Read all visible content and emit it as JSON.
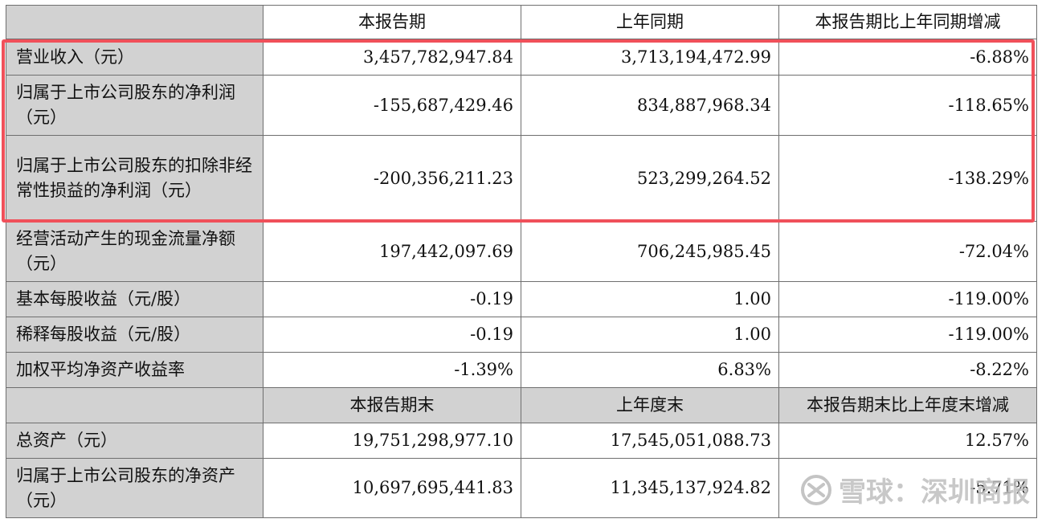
{
  "section1": {
    "headers": [
      "本报告期",
      "上年同期",
      "本报告期比上年同期增减"
    ],
    "rows": [
      {
        "label": "营业收入（元）",
        "values": [
          "3,457,782,947.84",
          "3,713,194,472.99",
          "-6.88%"
        ]
      },
      {
        "label": "归属于上市公司股东的净利润（元）",
        "values": [
          "-155,687,429.46",
          "834,887,968.34",
          "-118.65%"
        ]
      },
      {
        "label": "归属于上市公司股东的扣除非经常性损益的净利润（元）",
        "values": [
          "-200,356,211.23",
          "523,299,264.52",
          "-138.29%"
        ]
      },
      {
        "label": "经营活动产生的现金流量净额（元）",
        "values": [
          "197,442,097.69",
          "706,245,985.45",
          "-72.04%"
        ]
      },
      {
        "label": "基本每股收益（元/股）",
        "values": [
          "-0.19",
          "1.00",
          "-119.00%"
        ]
      },
      {
        "label": "稀释每股收益（元/股）",
        "values": [
          "-0.19",
          "1.00",
          "-119.00%"
        ]
      },
      {
        "label": "加权平均净资产收益率",
        "values": [
          "-1.39%",
          "6.83%",
          "-8.22%"
        ]
      }
    ]
  },
  "section2": {
    "headers": [
      "本报告期末",
      "上年度末",
      "本报告期末比上年度末增减"
    ],
    "rows": [
      {
        "label": "总资产（元）",
        "values": [
          "19,751,298,977.10",
          "17,545,051,088.73",
          "12.57%"
        ]
      },
      {
        "label": "归属于上市公司股东的净资产（元）",
        "values": [
          "10,697,695,441.83",
          "11,345,137,924.82",
          "-5.71%"
        ]
      }
    ]
  },
  "watermark": {
    "text": "雪球：深圳商报",
    "icon": "snowball-logo-icon"
  },
  "colors": {
    "highlight": "#f0505a",
    "label_bg": "#d2d2d2"
  }
}
